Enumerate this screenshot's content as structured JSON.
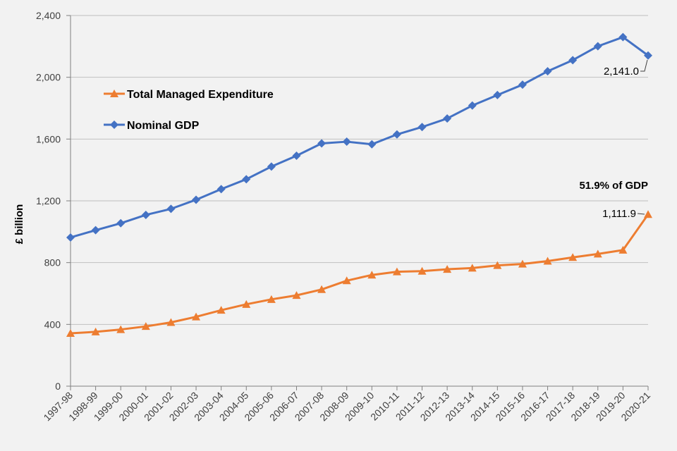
{
  "chart_data": {
    "type": "line",
    "title": "",
    "xlabel": "",
    "ylabel": "£ billion",
    "ylim": [
      0,
      2400
    ],
    "yticks": [
      0,
      400,
      800,
      1200,
      1600,
      2000,
      2400
    ],
    "ytick_labels": [
      "0",
      "400",
      "800",
      "1,200",
      "1,600",
      "2,000",
      "2,400"
    ],
    "grid": "horizontal",
    "legend_position": "upper-left",
    "categories": [
      "1997-98",
      "1998-99",
      "1999-00",
      "2000-01",
      "2001-02",
      "2002-03",
      "2003-04",
      "2004-05",
      "2005-06",
      "2006-07",
      "2007-08",
      "2008-09",
      "2009-10",
      "2010-11",
      "2011-12",
      "2012-13",
      "2013-14",
      "2014-15",
      "2015-16",
      "2016-17",
      "2017-18",
      "2018-19",
      "2019-20",
      "2020-21"
    ],
    "series": [
      {
        "name": "Total Managed Expenditure",
        "color": "#ed7d31",
        "marker": "triangle",
        "values": [
          342,
          352,
          367,
          387,
          413,
          449,
          492,
          530,
          562,
          588,
          626,
          683,
          720,
          741,
          745,
          757,
          765,
          782,
          791,
          810,
          834,
          856,
          881,
          1111.9
        ]
      },
      {
        "name": "Nominal GDP",
        "color": "#4472c4",
        "marker": "diamond",
        "values": [
          963,
          1010,
          1055,
          1109,
          1148,
          1207,
          1276,
          1340,
          1422,
          1492,
          1572,
          1583,
          1566,
          1630,
          1678,
          1733,
          1817,
          1885,
          1952,
          2039,
          2111,
          2201,
          2260,
          2141.0
        ]
      }
    ],
    "annotations": [
      {
        "id": "gdp-last",
        "text": "2,141.0"
      },
      {
        "id": "tme-last",
        "text": "1,111.9"
      },
      {
        "id": "pct-gdp",
        "text": "51.9% of GDP"
      }
    ]
  }
}
